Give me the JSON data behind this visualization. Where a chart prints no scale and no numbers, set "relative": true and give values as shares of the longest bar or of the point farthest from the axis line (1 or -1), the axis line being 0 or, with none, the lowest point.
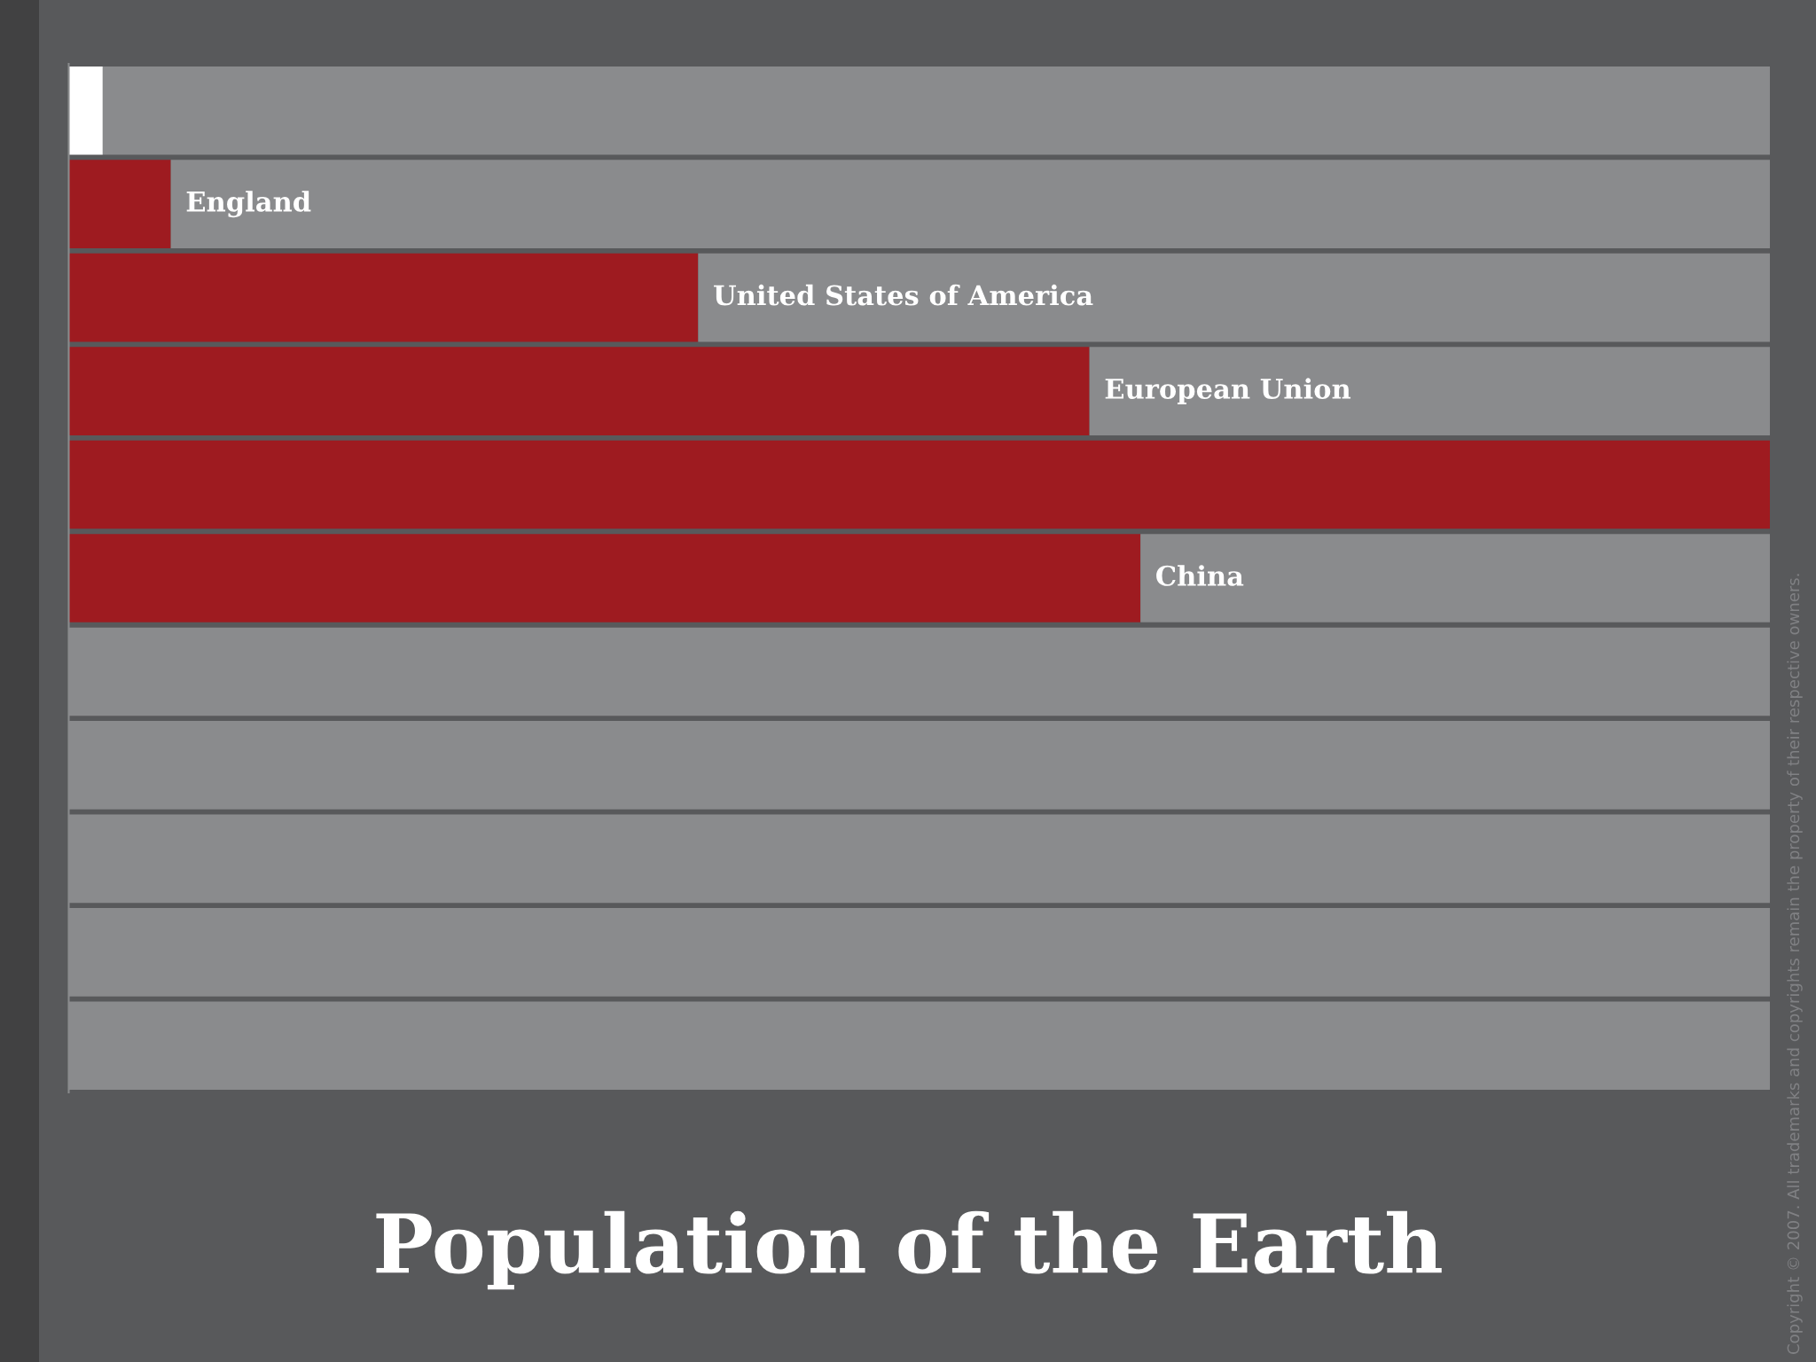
{
  "chart_data": {
    "type": "bar",
    "orientation": "horizontal",
    "stacked": true,
    "relative": true,
    "title": "Population of the Earth",
    "annotations": [
      "Copyright © 2007. All trademarks and copyrights remain the property of their respective owners."
    ],
    "categories": [
      null,
      "England",
      "United States of America",
      "European Union",
      null,
      "China",
      null,
      null,
      null,
      null,
      null
    ],
    "series": [
      {
        "color": "#ffffff",
        "values": [
          0.02,
          null,
          null,
          null,
          null,
          null,
          null,
          null,
          null,
          null,
          null
        ]
      },
      {
        "color": "#9e1b20",
        "values": [
          null,
          0.06,
          0.37,
          0.6,
          1,
          0.63,
          null,
          null,
          null,
          null,
          null
        ]
      },
      {
        "color": "#8a8b8d",
        "values": [
          0.98,
          0.94,
          0.63,
          0.4,
          null,
          0.37,
          1,
          1,
          1,
          1,
          1
        ]
      }
    ]
  }
}
